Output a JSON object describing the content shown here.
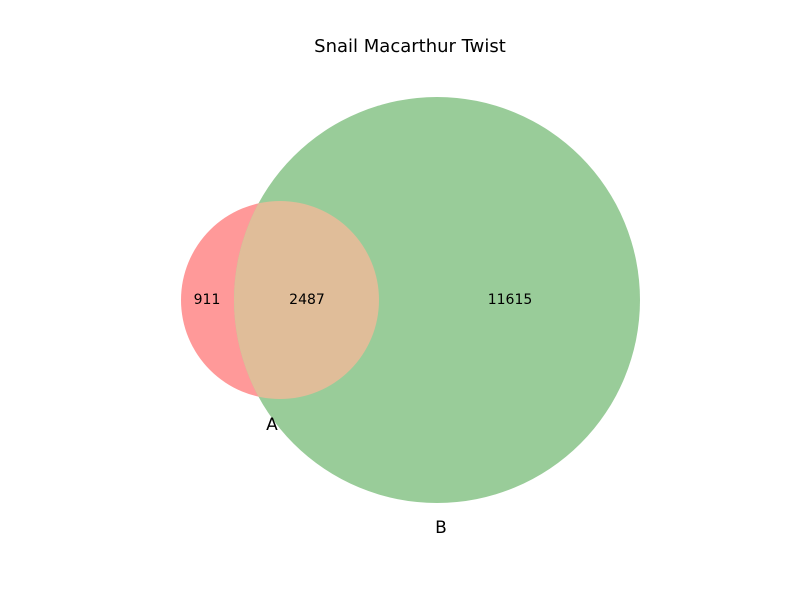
{
  "chart_data": {
    "type": "venn",
    "title": "Snail Macarthur Twist",
    "sets": [
      {
        "name": "A",
        "label": "A",
        "color": "#ff9999"
      },
      {
        "name": "B",
        "label": "B",
        "color": "#99cc99"
      }
    ],
    "regions": {
      "a_only": {
        "label": "911",
        "value": 911
      },
      "intersection": {
        "label": "2487",
        "value": 2487
      },
      "b_only": {
        "label": "11615",
        "value": 11615
      }
    },
    "intersection_color": "#e0bd99"
  }
}
